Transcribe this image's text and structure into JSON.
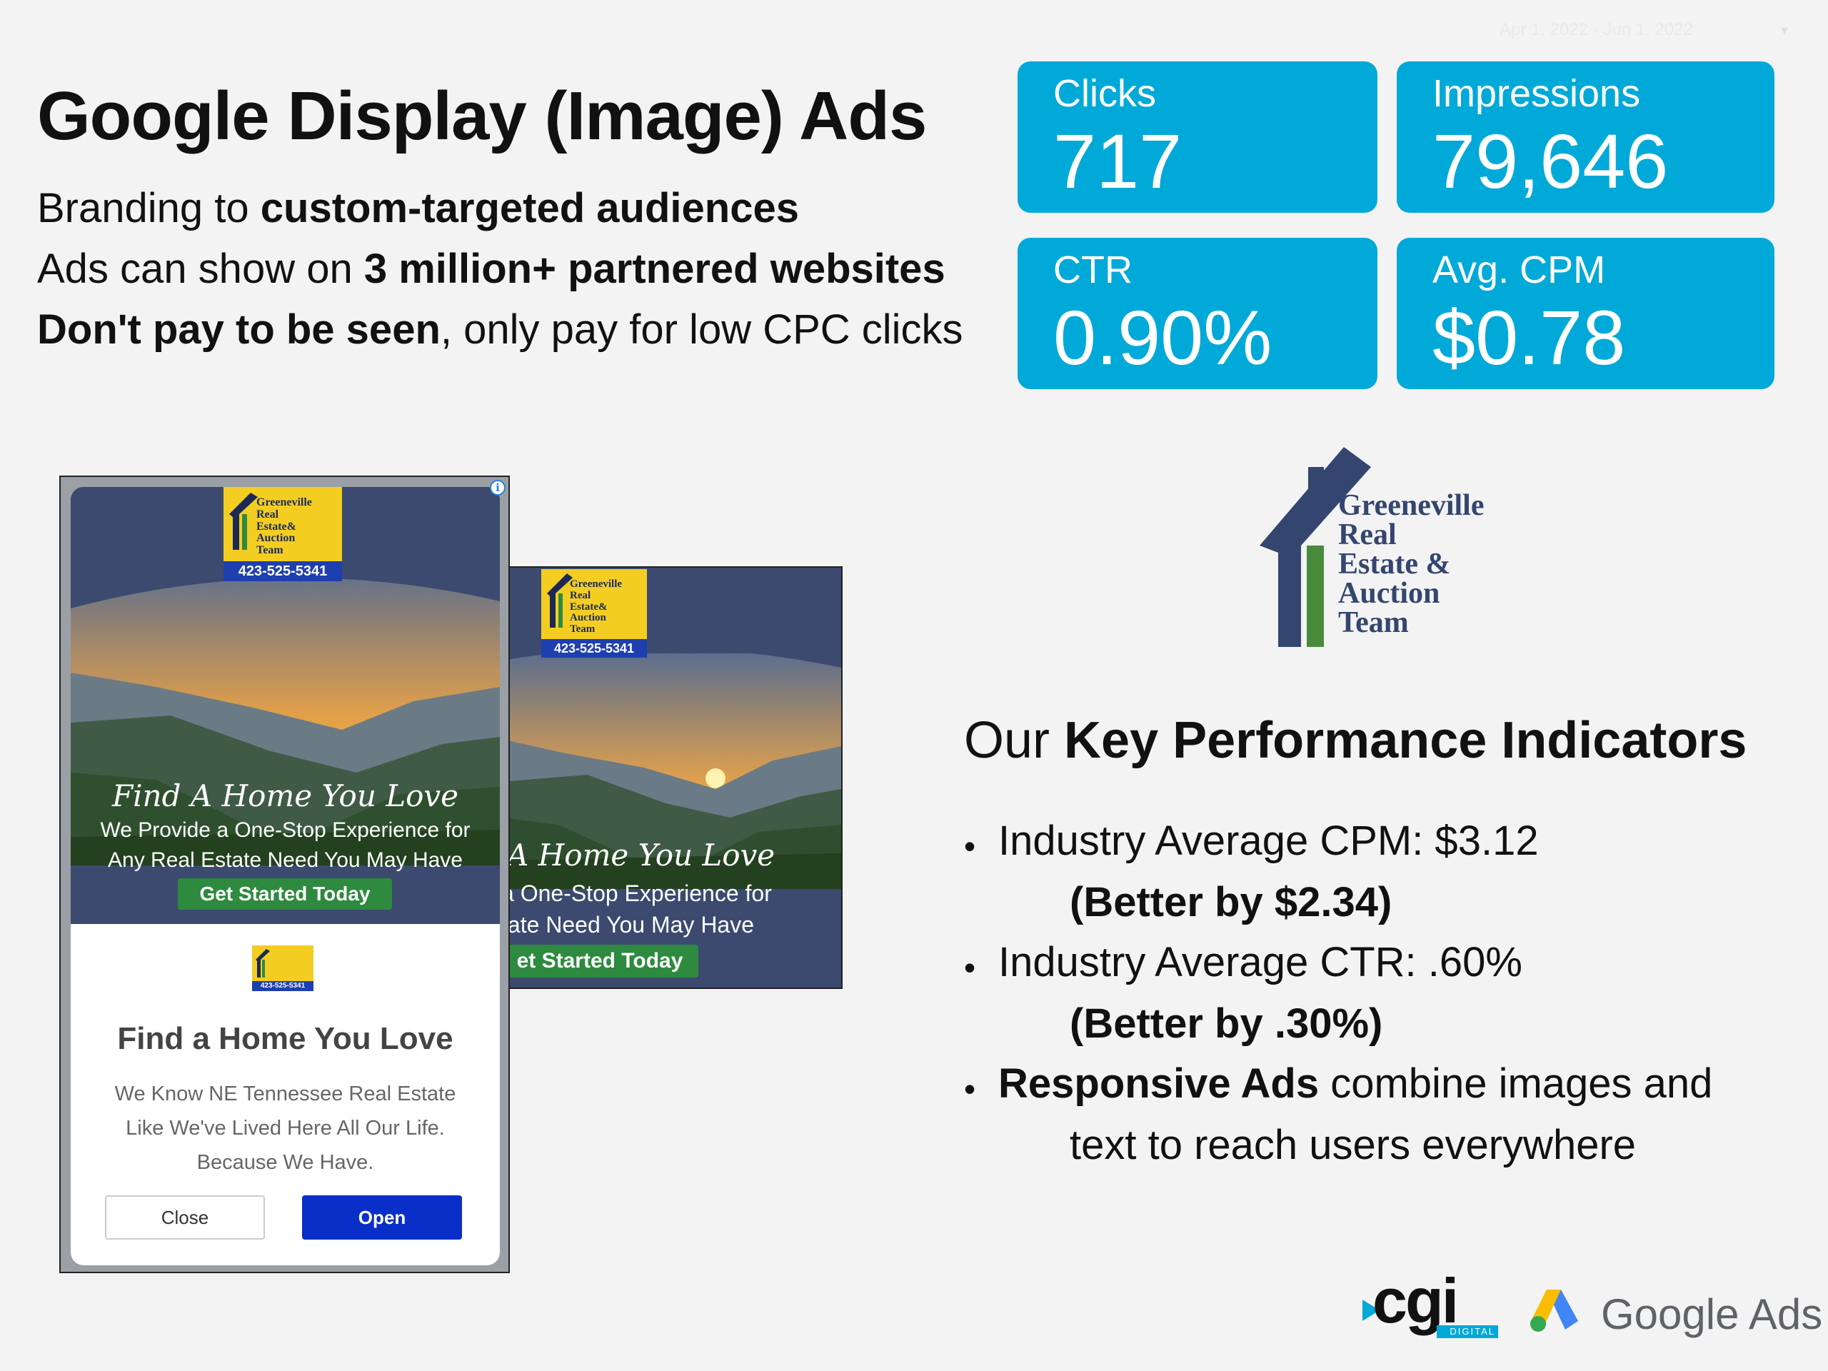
{
  "header": {
    "title": "Google Display (Image) Ads",
    "line1": {
      "pre": "Branding to ",
      "bold": "custom-targeted audiences"
    },
    "line2": {
      "pre": "Ads can show on ",
      "bold": "3 million+ partnered websites"
    },
    "line3": {
      "bold": "Don't pay to be seen",
      "post": ", only pay for low CPC clicks"
    },
    "date_range": "Apr 1, 2022 - Jun 1, 2022"
  },
  "metrics": [
    {
      "label": "Clicks",
      "value": "717"
    },
    {
      "label": "Impressions",
      "value": "79,646"
    },
    {
      "label": "CTR",
      "value": "0.90%"
    },
    {
      "label": "Avg. CPM",
      "value": "$0.78"
    }
  ],
  "brand_logo": {
    "lines": [
      "Greeneville",
      "Real",
      "Estate &",
      "Auction",
      "Team"
    ],
    "colors": {
      "navy": "#34466f",
      "green": "#4a8a3c"
    }
  },
  "ad_mini_logo": {
    "lines": [
      "Greeneville",
      "Real",
      "Estate&",
      "Auction",
      "Team"
    ],
    "phone": "423-525-5341"
  },
  "ad_tall": {
    "script": "Find A Home You Love",
    "line1": "We Provide a One-Stop Experience for",
    "line2": "Any Real Estate Need You May Have",
    "cta": "Get Started Today",
    "info_icon": "i",
    "card_title": "Find a Home You Love",
    "card_text1": "We Know NE Tennessee Real Estate",
    "card_text2": "Like We've Lived Here All Our Life.",
    "card_text3": "Because We Have.",
    "close_label": "Close",
    "open_label": "Open"
  },
  "ad_wide": {
    "script": "A Home You Love",
    "line1": "a One-Stop Experience for",
    "line2": "tate Need You May Have",
    "cta": "et Started Today"
  },
  "kpi": {
    "heading_pre": "Our ",
    "heading_bold": "Key Performance Indicators",
    "item1": "Industry Average CPM: $3.12",
    "item1_sub": "(Better by $2.34)",
    "item2": "Industry Average CTR: .60%",
    "item2_sub": "(Better by .30%)",
    "item3_bold": "Responsive Ads",
    "item3_rest": " combine images and",
    "item3_cont": "text to reach users everywhere",
    "bullet": "•"
  },
  "footer": {
    "cgi": "cgi",
    "cgi_sub": "DIGITAL",
    "google_ads": "Google Ads"
  },
  "colors": {
    "card": "#00a9d8",
    "open_button": "#0a2fc8",
    "cta_green": "#2d8a3e",
    "ad_navy": "#3b4a6e"
  }
}
